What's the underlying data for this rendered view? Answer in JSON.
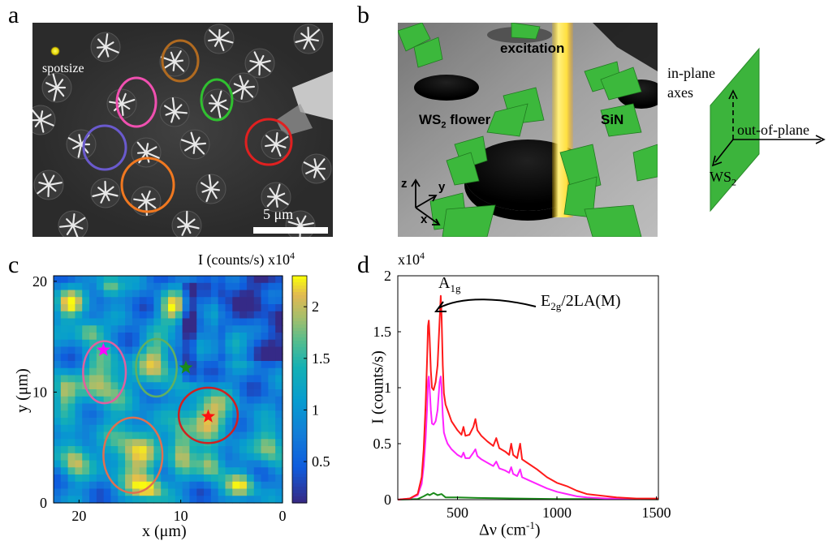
{
  "panel_labels": {
    "a": "a",
    "b": "b",
    "c": "c",
    "d": "d"
  },
  "panel_a": {
    "spot_label": "spotsize",
    "scalebar_label": "5 μm",
    "circle_colors": [
      "#f050b0",
      "#b06a20",
      "#30c030",
      "#6a5acd",
      "#f07820",
      "#e02020"
    ]
  },
  "panel_b": {
    "excitation_label": "excitation",
    "flower_label": "WS",
    "flower_sub": "2",
    "flower_suffix": " flower",
    "sin_label": "SiN",
    "axis_z": "z",
    "axis_y": "y",
    "axis_x": "x",
    "inplane_label_1": "in-plane",
    "inplane_label_2": "axes",
    "outplane_label": "out-of-plane",
    "ws2_label": "WS",
    "ws2_sub": "2"
  },
  "chart_data": [
    {
      "type": "heatmap",
      "colorbar_title": "I (counts/s) x10",
      "colorbar_title_sup": "4",
      "colorbar_ticks": [
        "2",
        "1.5",
        "1",
        "0.5"
      ],
      "colorbar_tick_values": [
        2,
        1.5,
        1,
        0.5
      ],
      "colorbar_range": [
        0.1,
        2.3
      ],
      "xlabel": "x (μm)",
      "ylabel": "y (μm)",
      "x_ticks": [
        "20",
        "10",
        "0"
      ],
      "y_ticks": [
        "20",
        "10",
        "0"
      ],
      "x_tick_values": [
        20,
        10,
        0
      ],
      "y_tick_values": [
        20,
        10,
        0
      ],
      "xlim": [
        22.5,
        0
      ],
      "ylim": [
        0,
        20.5
      ],
      "circles": [
        {
          "color": "#e060a0",
          "cx": 17.5,
          "cy": 11.8,
          "rx": 2.1,
          "ry": 2.8
        },
        {
          "color": "#60b060",
          "cx": 12.4,
          "cy": 12.2,
          "rx": 2.0,
          "ry": 2.6
        },
        {
          "color": "#d02020",
          "cx": 7.3,
          "cy": 7.9,
          "rx": 2.9,
          "ry": 2.5
        },
        {
          "color": "#e07050",
          "cx": 14.7,
          "cy": 4.3,
          "rx": 2.9,
          "ry": 3.4
        }
      ],
      "stars": [
        {
          "color": "#ff00ff",
          "x": 17.6,
          "y": 13.8
        },
        {
          "color": "#1a8a1a",
          "x": 9.5,
          "y": 12.2
        },
        {
          "color": "#ff1010",
          "x": 7.3,
          "y": 7.8
        }
      ]
    },
    {
      "type": "line",
      "multiplier_label": "x10",
      "multiplier_sup": "4",
      "xlabel": "Δν (cm",
      "xlabel_sup": "-1",
      "xlabel_end": ")",
      "ylabel": "I (counts/s)",
      "x_ticks": [
        "500",
        "1000",
        "1500"
      ],
      "x_tick_values": [
        500,
        1000,
        1500
      ],
      "y_ticks": [
        "0",
        "0.5",
        "1",
        "1.5",
        "2"
      ],
      "y_tick_values": [
        0,
        0.5,
        1,
        1.5,
        2
      ],
      "xlim": [
        200,
        1510
      ],
      "ylim": [
        0,
        2
      ],
      "annotation_a1g": "A",
      "annotation_a1g_sub": "1g",
      "annotation_e2g": "E",
      "annotation_e2g_sub": "2g",
      "annotation_e2g_rest": "/2LA(M)",
      "series": [
        {
          "color": "#ff1a1a",
          "x": [
            200,
            260,
            300,
            320,
            330,
            340,
            348,
            352,
            356,
            360,
            366,
            372,
            380,
            390,
            400,
            410,
            416,
            420,
            426,
            432,
            440,
            450,
            470,
            500,
            520,
            530,
            540,
            560,
            580,
            590,
            600,
            620,
            650,
            680,
            695,
            710,
            740,
            760,
            770,
            780,
            800,
            815,
            825,
            850,
            900,
            950,
            1000,
            1050,
            1100,
            1150,
            1200,
            1250,
            1300,
            1400,
            1510
          ],
          "y": [
            0.0,
            0.01,
            0.05,
            0.2,
            0.45,
            0.85,
            1.3,
            1.55,
            1.6,
            1.45,
            1.15,
            1.0,
            0.98,
            1.05,
            1.2,
            1.6,
            1.82,
            1.65,
            1.2,
            0.95,
            0.85,
            0.8,
            0.7,
            0.62,
            0.58,
            0.65,
            0.57,
            0.58,
            0.65,
            0.72,
            0.62,
            0.57,
            0.52,
            0.48,
            0.55,
            0.46,
            0.43,
            0.4,
            0.5,
            0.4,
            0.37,
            0.5,
            0.36,
            0.33,
            0.27,
            0.2,
            0.15,
            0.12,
            0.08,
            0.05,
            0.04,
            0.03,
            0.02,
            0.01,
            0.01
          ]
        },
        {
          "color": "#ff22ff",
          "x": [
            200,
            260,
            300,
            320,
            330,
            340,
            348,
            352,
            356,
            360,
            366,
            372,
            380,
            390,
            400,
            410,
            416,
            420,
            426,
            432,
            440,
            450,
            470,
            500,
            520,
            530,
            540,
            560,
            580,
            590,
            600,
            620,
            650,
            680,
            695,
            710,
            740,
            760,
            770,
            780,
            800,
            815,
            825,
            850,
            900,
            950,
            1000,
            1050,
            1100,
            1150,
            1200,
            1250,
            1300,
            1400,
            1510
          ],
          "y": [
            0.0,
            0.01,
            0.04,
            0.14,
            0.3,
            0.55,
            0.85,
            1.05,
            1.1,
            1.0,
            0.8,
            0.68,
            0.67,
            0.7,
            0.8,
            1.05,
            1.1,
            1.0,
            0.75,
            0.6,
            0.55,
            0.5,
            0.45,
            0.4,
            0.38,
            0.42,
            0.37,
            0.37,
            0.42,
            0.45,
            0.39,
            0.36,
            0.33,
            0.3,
            0.34,
            0.28,
            0.26,
            0.24,
            0.29,
            0.23,
            0.21,
            0.27,
            0.2,
            0.18,
            0.14,
            0.1,
            0.07,
            0.05,
            0.03,
            0.02,
            0.015,
            0.01,
            0.01,
            0.005,
            0.005
          ]
        },
        {
          "color": "#1a8a1a",
          "x": [
            200,
            300,
            330,
            350,
            360,
            380,
            400,
            420,
            440,
            500,
            600,
            800,
            1000,
            1200,
            1510
          ],
          "y": [
            0.0,
            0.005,
            0.03,
            0.05,
            0.04,
            0.06,
            0.04,
            0.05,
            0.02,
            0.02,
            0.015,
            0.01,
            0.005,
            0.005,
            0.003
          ]
        }
      ]
    }
  ]
}
